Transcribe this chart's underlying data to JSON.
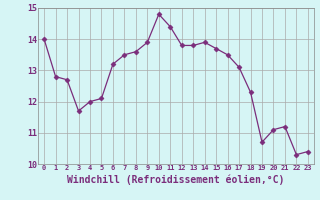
{
  "x": [
    0,
    1,
    2,
    3,
    4,
    5,
    6,
    7,
    8,
    9,
    10,
    11,
    12,
    13,
    14,
    15,
    16,
    17,
    18,
    19,
    20,
    21,
    22,
    23
  ],
  "y": [
    14.0,
    12.8,
    12.7,
    11.7,
    12.0,
    12.1,
    13.2,
    13.5,
    13.6,
    13.9,
    14.8,
    14.4,
    13.8,
    13.8,
    13.9,
    13.7,
    13.5,
    13.1,
    12.3,
    10.7,
    11.1,
    11.2,
    10.3,
    10.4
  ],
  "line_color": "#7b2d7b",
  "marker": "D",
  "marker_size": 2.5,
  "bg_color": "#d6f5f5",
  "grid_color": "#aaaaaa",
  "xlabel": "Windchill (Refroidissement éolien,°C)",
  "xlabel_fontsize": 7,
  "ylim": [
    10,
    15
  ],
  "xlim_min": -0.5,
  "xlim_max": 23.5,
  "yticks": [
    10,
    11,
    12,
    13,
    14,
    15
  ],
  "xticks": [
    0,
    1,
    2,
    3,
    4,
    5,
    6,
    7,
    8,
    9,
    10,
    11,
    12,
    13,
    14,
    15,
    16,
    17,
    18,
    19,
    20,
    21,
    22,
    23
  ]
}
